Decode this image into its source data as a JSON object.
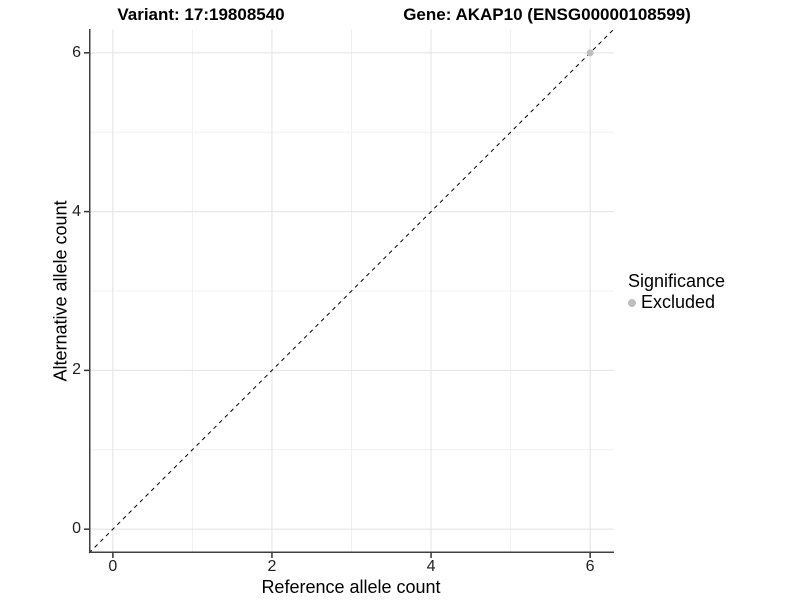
{
  "chart_data": {
    "type": "scatter",
    "title_variant": "Variant: 17:19808540",
    "title_gene": "Gene: AKAP10 (ENSG00000108599)",
    "xlabel": "Reference allele count",
    "ylabel": "Alternative allele count",
    "xlim": [
      -0.3,
      6.3
    ],
    "ylim": [
      -0.3,
      6.3
    ],
    "x_ticks": [
      0,
      2,
      4,
      6
    ],
    "y_ticks": [
      0,
      2,
      4,
      6
    ],
    "x_tick_labels": [
      "0",
      "2",
      "4",
      "6"
    ],
    "y_tick_labels": [
      "0",
      "2",
      "4",
      "6"
    ],
    "minor_ticks": [
      1,
      3,
      5
    ],
    "grid": true,
    "identity_line": {
      "style": "dashed",
      "color": "#000000",
      "from": [
        -0.3,
        -0.3
      ],
      "to": [
        6.3,
        6.3
      ],
      "equation": "y = x"
    },
    "series": [
      {
        "name": "Excluded",
        "color": "#bebebe",
        "points": [
          {
            "x": 6,
            "y": 6
          }
        ]
      }
    ],
    "legend": {
      "title": "Significance",
      "position": "right",
      "entries": [
        {
          "label": "Excluded",
          "color": "#bebebe",
          "marker": "dot"
        }
      ]
    },
    "colors": {
      "background": "#ffffff",
      "axis_line": "#3f3f3f",
      "tick_mark": "#333333",
      "grid_major": "#e2e2e2",
      "grid_minor": "#f0f0f0",
      "point": "#bebebe"
    }
  }
}
